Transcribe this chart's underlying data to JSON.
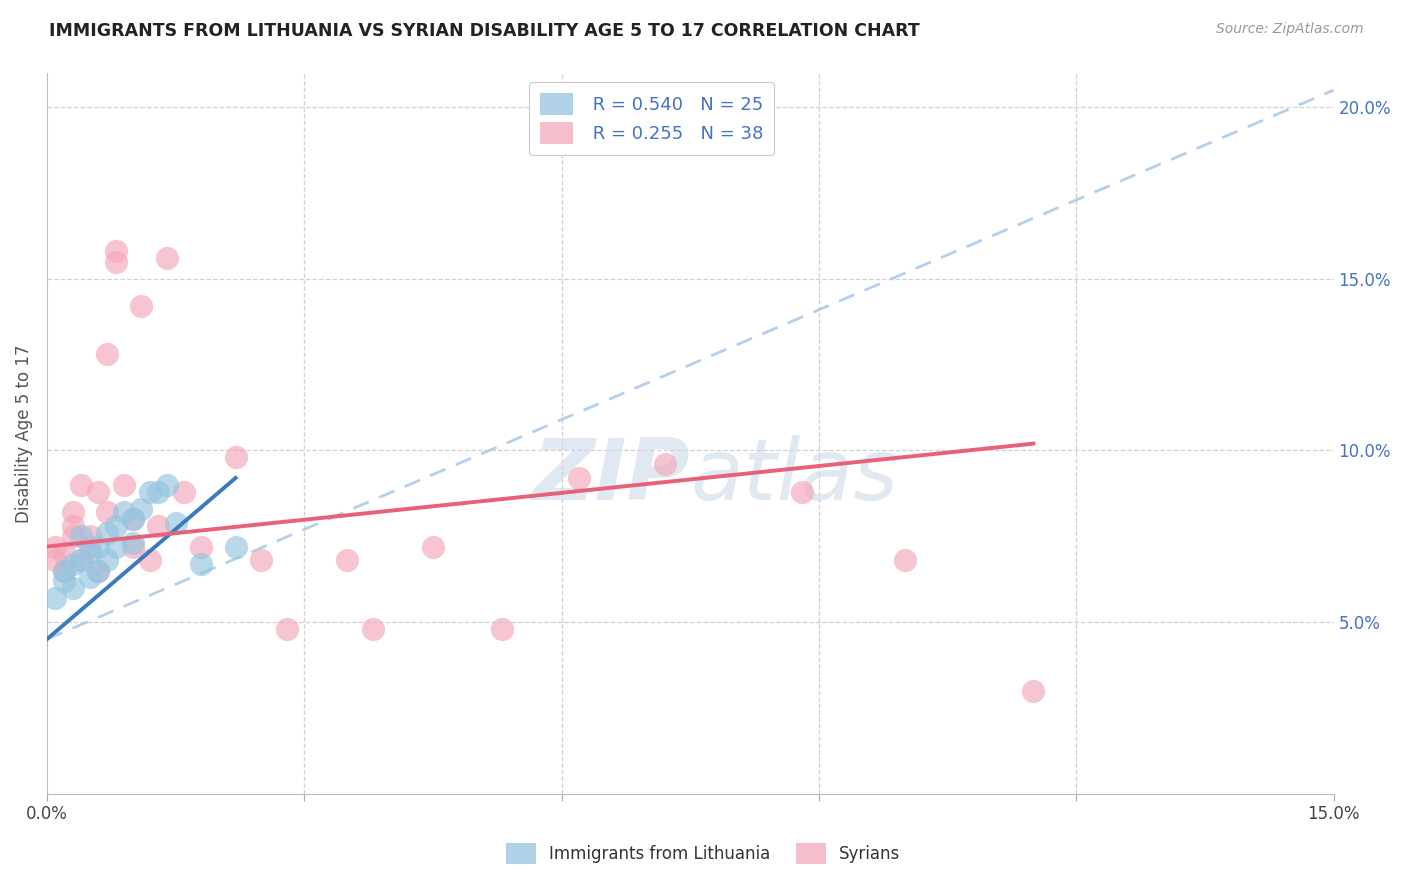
{
  "title": "IMMIGRANTS FROM LITHUANIA VS SYRIAN DISABILITY AGE 5 TO 17 CORRELATION CHART",
  "source": "Source: ZipAtlas.com",
  "ylabel": "Disability Age 5 to 17",
  "xlim": [
    0.0,
    0.15
  ],
  "ylim": [
    0.0,
    0.21
  ],
  "y_tick_right": [
    0.05,
    0.1,
    0.15,
    0.2
  ],
  "y_tick_right_labels": [
    "5.0%",
    "10.0%",
    "15.0%",
    "20.0%"
  ],
  "legend_r1": "R = 0.540",
  "legend_n1": "N = 25",
  "legend_r2": "R = 0.255",
  "legend_n2": "N = 38",
  "color_blue": "#94c4e0",
  "color_pink": "#f4a7b9",
  "color_blue_line": "#3a7abf",
  "color_pink_line": "#e8607a",
  "color_blue_dashed": "#a8c8e8",
  "watermark_color": "#ccd9e8",
  "background_color": "#ffffff",
  "grid_color": "#cccccc",
  "title_color": "#222222",
  "right_tick_color": "#4472c4",
  "legend_text_color": "#4472c4",
  "lithuania_x": [
    0.001,
    0.002,
    0.002,
    0.003,
    0.003,
    0.004,
    0.004,
    0.005,
    0.005,
    0.006,
    0.006,
    0.007,
    0.007,
    0.008,
    0.008,
    0.009,
    0.01,
    0.01,
    0.011,
    0.012,
    0.013,
    0.014,
    0.015,
    0.018,
    0.022
  ],
  "lithuania_y": [
    0.057,
    0.062,
    0.065,
    0.06,
    0.067,
    0.068,
    0.075,
    0.07,
    0.063,
    0.072,
    0.065,
    0.076,
    0.068,
    0.078,
    0.072,
    0.082,
    0.08,
    0.073,
    0.083,
    0.088,
    0.088,
    0.09,
    0.079,
    0.067,
    0.072
  ],
  "syrian_x": [
    0.001,
    0.001,
    0.002,
    0.002,
    0.003,
    0.003,
    0.003,
    0.004,
    0.004,
    0.005,
    0.005,
    0.006,
    0.006,
    0.007,
    0.007,
    0.008,
    0.008,
    0.009,
    0.01,
    0.01,
    0.011,
    0.012,
    0.013,
    0.014,
    0.016,
    0.018,
    0.022,
    0.025,
    0.028,
    0.035,
    0.038,
    0.045,
    0.053,
    0.062,
    0.072,
    0.088,
    0.1,
    0.115
  ],
  "syrian_y": [
    0.068,
    0.072,
    0.065,
    0.07,
    0.075,
    0.078,
    0.082,
    0.068,
    0.09,
    0.072,
    0.075,
    0.065,
    0.088,
    0.128,
    0.082,
    0.158,
    0.155,
    0.09,
    0.08,
    0.072,
    0.142,
    0.068,
    0.078,
    0.156,
    0.088,
    0.072,
    0.098,
    0.068,
    0.048,
    0.068,
    0.048,
    0.072,
    0.048,
    0.092,
    0.096,
    0.088,
    0.068,
    0.03
  ],
  "lith_line_x": [
    0.0,
    0.022
  ],
  "lith_line_y": [
    0.045,
    0.092
  ],
  "syr_line_x": [
    0.0,
    0.115
  ],
  "syr_line_y": [
    0.072,
    0.102
  ],
  "dashed_line_x": [
    0.0,
    0.15
  ],
  "dashed_line_y": [
    0.045,
    0.205
  ]
}
